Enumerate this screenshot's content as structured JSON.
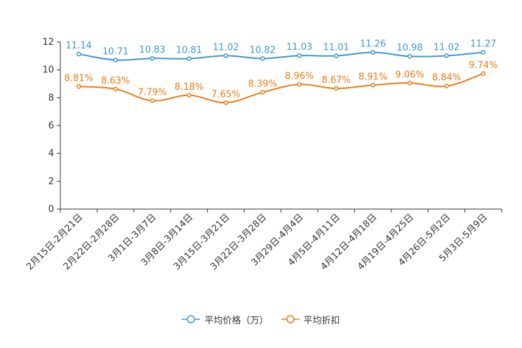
{
  "chart_data": {
    "type": "line",
    "title": "",
    "xlabel": "",
    "ylabel": "",
    "ylim": [
      0,
      12
    ],
    "yticks": [
      0,
      2,
      4,
      6,
      8,
      10,
      12
    ],
    "categories": [
      "2月15日-2月21日",
      "2月22日-2月28日",
      "3月1日-3月7日",
      "3月8日-3月14日",
      "3月15日-3月21日",
      "3月22日-3月28日",
      "3月29日-4月4日",
      "4月5日-4月11日",
      "4月12日-4月18日",
      "4月19日-4月25日",
      "4月26日-5月2日",
      "5月3日-5月9日"
    ],
    "series": [
      {
        "name": "平均价格（万）",
        "color": "#3b98cf",
        "values": [
          11.14,
          10.71,
          10.83,
          10.81,
          11.02,
          10.82,
          11.03,
          11.01,
          11.26,
          10.98,
          11.02,
          11.27
        ],
        "labels": [
          "11.14",
          "10.71",
          "10.83",
          "10.81",
          "11.02",
          "10.82",
          "11.03",
          "11.01",
          "11.26",
          "10.98",
          "11.02",
          "11.27"
        ]
      },
      {
        "name": "平均折扣",
        "color": "#f07a16",
        "values": [
          8.81,
          8.63,
          7.79,
          8.18,
          7.65,
          8.39,
          8.96,
          8.67,
          8.91,
          9.06,
          8.84,
          9.74
        ],
        "labels": [
          "8.81%",
          "8.63%",
          "7.79%",
          "8.18%",
          "7.65%",
          "8.39%",
          "8.96%",
          "8.67%",
          "8.91%",
          "9.06%",
          "8.84%",
          "9.74%"
        ]
      }
    ],
    "legend_position": "bottom"
  }
}
